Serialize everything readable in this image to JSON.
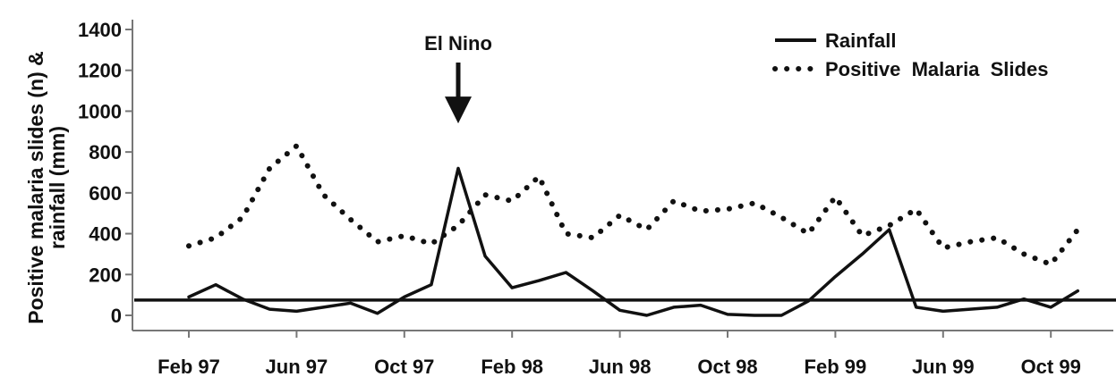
{
  "chart_data": {
    "type": "line",
    "title": "",
    "xlabel": "",
    "ylabel_line1": "Positive malaria slides (n) &",
    "ylabel_line2": "rainfall (mm)",
    "ylim": [
      0,
      1400
    ],
    "yticks": [
      0,
      200,
      400,
      600,
      800,
      1000,
      1200,
      1400
    ],
    "x_tick_labels": [
      "Feb 97",
      "Jun 97",
      "Oct 97",
      "Feb 98",
      "Jun 98",
      "Oct 98",
      "Feb 99",
      "Jun 99",
      "Oct 99"
    ],
    "x_tick_months": [
      0,
      4,
      8,
      12,
      16,
      20,
      24,
      28,
      32
    ],
    "legend_position": "top-right",
    "series": [
      {
        "name": "Rainfall",
        "style": "solid",
        "color": "#111111",
        "months": [
          0,
          1,
          2,
          3,
          4,
          5,
          6,
          7,
          8,
          9,
          10,
          11,
          12,
          13,
          14,
          15,
          16,
          17,
          18,
          19,
          20,
          21,
          22,
          23,
          24,
          25,
          26,
          27,
          28,
          29,
          30,
          31,
          32,
          33,
          34
        ],
        "values": [
          90,
          150,
          80,
          30,
          20,
          40,
          60,
          10,
          90,
          150,
          720,
          290,
          135,
          170,
          210,
          120,
          25,
          0,
          40,
          50,
          5,
          0,
          0,
          70,
          190,
          300,
          420,
          40,
          20,
          30,
          40,
          80,
          40,
          120,
          null
        ]
      },
      {
        "name": "Positive  Malaria  Slides",
        "style": "dotted",
        "color": "#111111",
        "months": [
          0,
          1,
          2,
          3,
          4,
          5,
          6,
          7,
          8,
          9,
          10,
          11,
          12,
          13,
          14,
          15,
          16,
          17,
          18,
          19,
          20,
          21,
          22,
          23,
          24,
          25,
          26,
          27,
          28,
          29,
          30,
          31,
          32,
          33,
          34
        ],
        "values": [
          340,
          380,
          480,
          720,
          830,
          590,
          470,
          360,
          390,
          350,
          440,
          590,
          560,
          680,
          400,
          380,
          490,
          420,
          560,
          510,
          520,
          550,
          480,
          400,
          580,
          390,
          440,
          520,
          330,
          360,
          380,
          300,
          250,
          420,
          null
        ]
      }
    ],
    "reference_line": {
      "value": 75,
      "style": "solid",
      "color": "#111111"
    },
    "annotations": [
      {
        "text": "El Nino",
        "month": 10,
        "arrow_tip_value": 940
      }
    ]
  }
}
